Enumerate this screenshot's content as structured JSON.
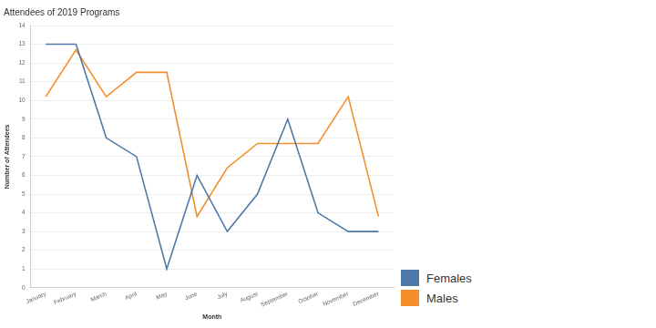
{
  "chart_data": {
    "type": "line",
    "title": "Attendees of 2019 Programs",
    "x_label": "Month",
    "y_label": "Number of Attendees",
    "categories": [
      "January",
      "February",
      "March",
      "April",
      "May",
      "June",
      "July",
      "August",
      "September",
      "October",
      "November",
      "December"
    ],
    "series": [
      {
        "name": "Females",
        "color": "#4e79a7",
        "values": [
          13,
          13,
          8,
          7,
          1,
          6,
          3,
          5,
          9,
          4,
          3,
          3
        ]
      },
      {
        "name": "Males",
        "color": "#f28e2b",
        "values": [
          10.2,
          12.7,
          10.2,
          11.5,
          11.5,
          3.8,
          6.4,
          7.7,
          7.7,
          7.7,
          10.2,
          3.8
        ]
      }
    ],
    "ylim": [
      0,
      14
    ],
    "yticks": [
      0,
      1,
      2,
      3,
      4,
      5,
      6,
      7,
      8,
      9,
      10,
      11,
      12,
      13,
      14
    ],
    "grid": true,
    "legend": "lower right",
    "marker": "none"
  }
}
